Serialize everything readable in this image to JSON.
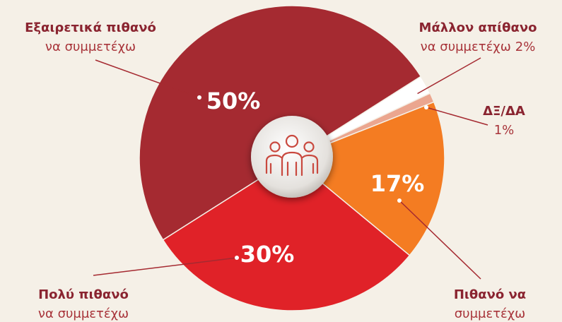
{
  "chart_data": {
    "type": "pie",
    "categories": [
      [
        "Εξαιρετικά πιθανό",
        "να συμμετέχω"
      ],
      [
        "Μάλλον απίθανο",
        "να συμμετέχω"
      ],
      [
        "ΔΞ/ΔΑ"
      ],
      [
        "Πιθανό να",
        "συμμετέχω"
      ],
      [
        "Πολύ πιθανό",
        "να συμμετέχω"
      ]
    ],
    "values": [
      50,
      2,
      1,
      17,
      30
    ],
    "value_labels": [
      "50%",
      "2%",
      "1%",
      "17%",
      "30%"
    ],
    "colors": [
      "#a52a31",
      "#ffffff",
      "#eba68f",
      "#f47c22",
      "#e02228"
    ]
  }
}
